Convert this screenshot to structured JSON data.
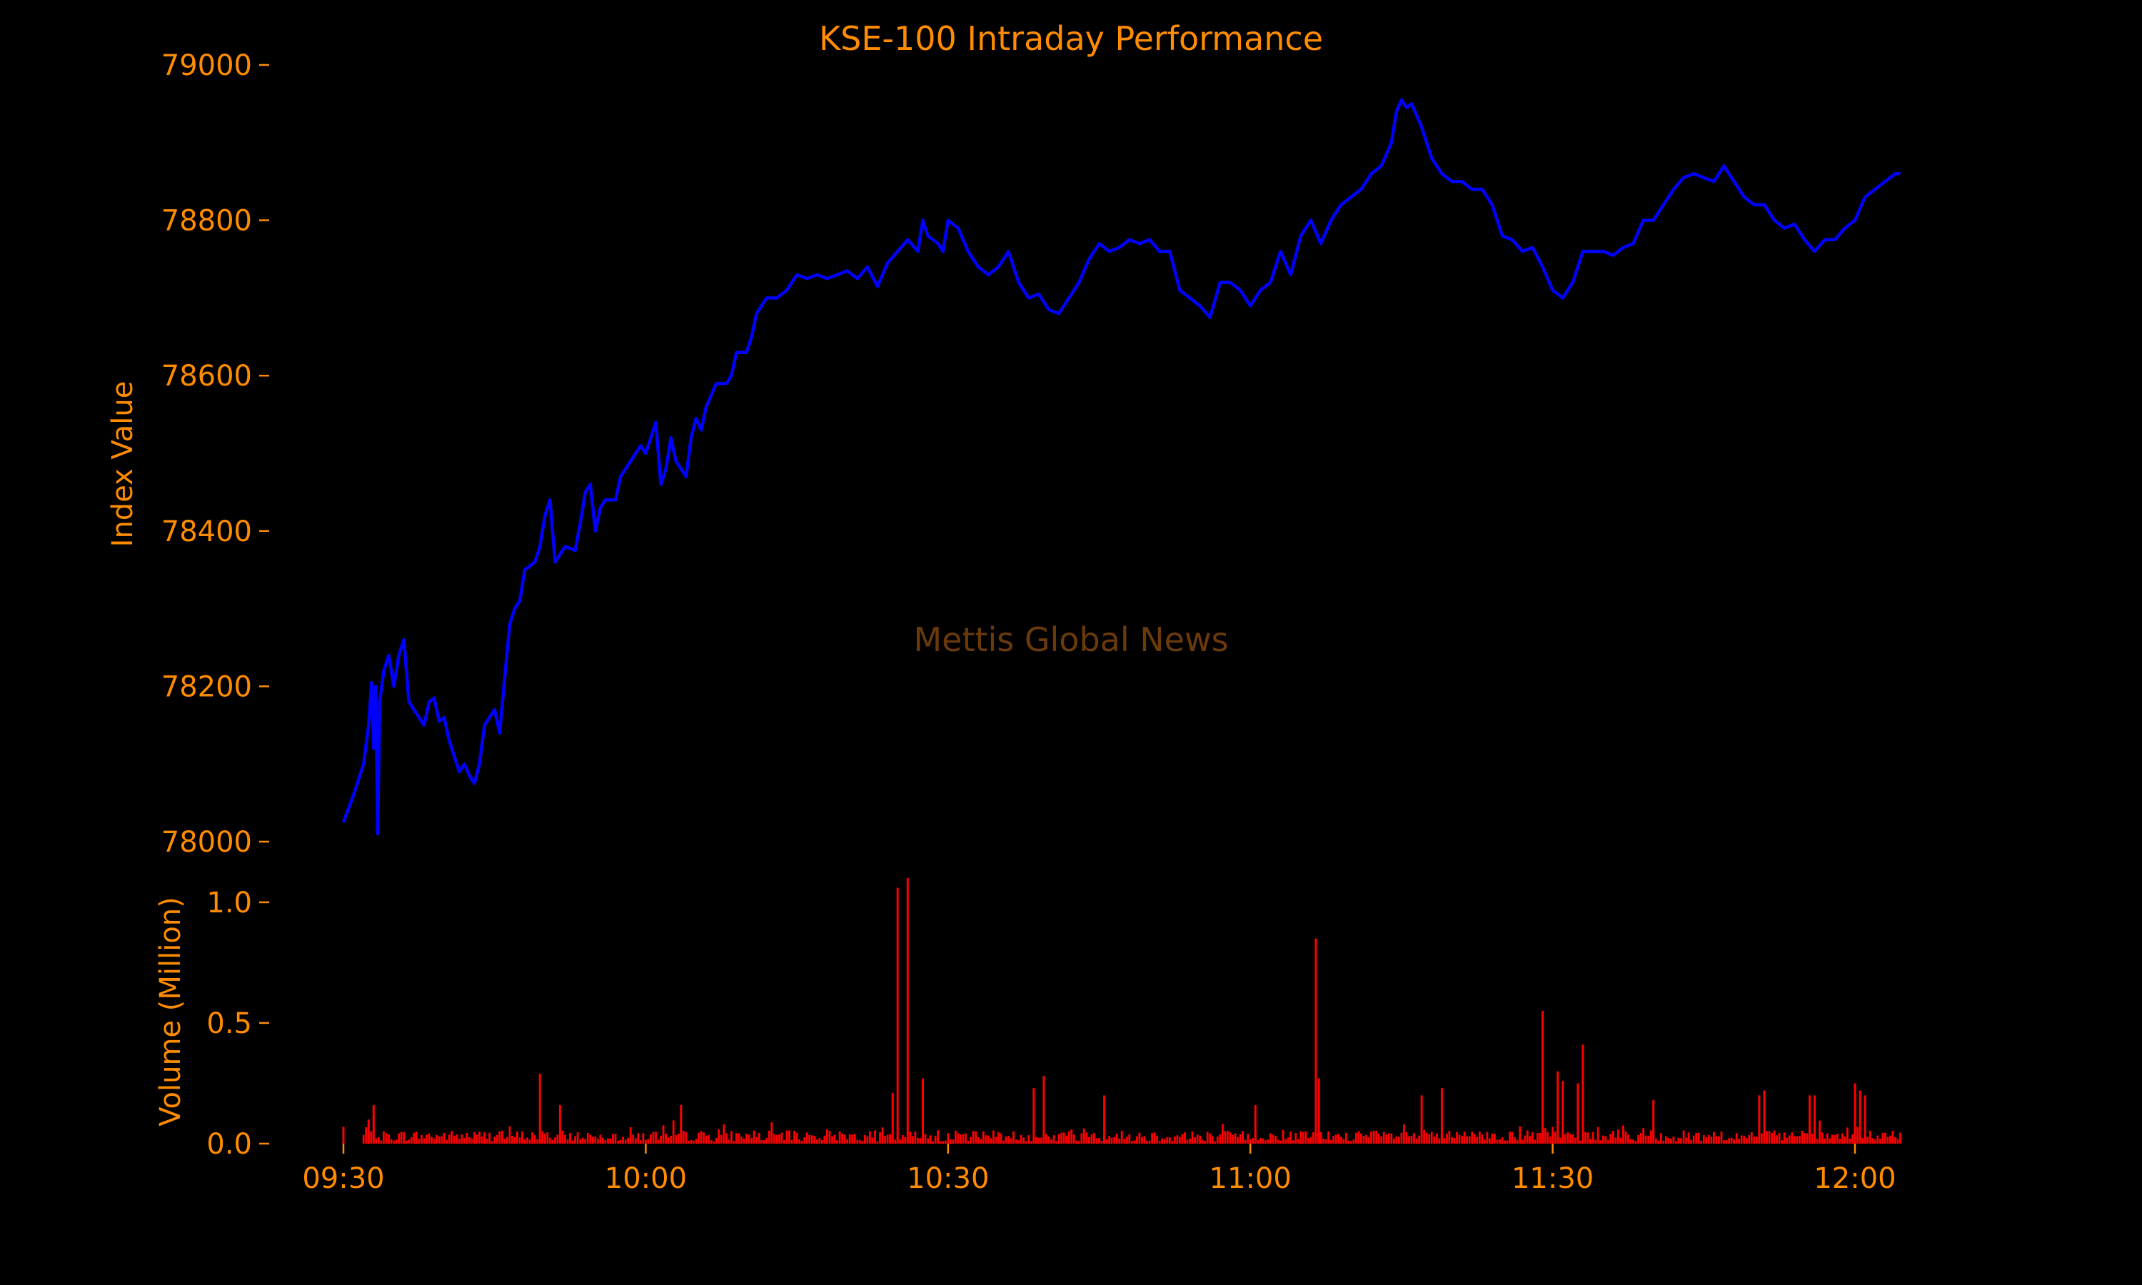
{
  "chart_data": {
    "type": "line",
    "title": "KSE-100 Intraday Performance",
    "watermark": "Mettis Global News",
    "x_axis": {
      "ticks": [
        "09:30",
        "10:00",
        "10:30",
        "11:00",
        "11:30",
        "12:00"
      ],
      "range_minutes": [
        0,
        150
      ],
      "start_time": "09:30"
    },
    "index_panel": {
      "ylabel": "Index Value",
      "ylim": [
        78000,
        79000
      ],
      "yticks": [
        "78000",
        "78200",
        "78400",
        "78600",
        "78800",
        "79000"
      ],
      "series": {
        "color": "#0000ff",
        "points": [
          [
            0,
            78025
          ],
          [
            1,
            78060
          ],
          [
            1.5,
            78080
          ],
          [
            2,
            78100
          ],
          [
            2.5,
            78150
          ],
          [
            2.8,
            78205
          ],
          [
            3,
            78120
          ],
          [
            3.2,
            78200
          ],
          [
            3.4,
            78010
          ],
          [
            3.6,
            78180
          ],
          [
            4,
            78220
          ],
          [
            4.5,
            78240
          ],
          [
            5,
            78200
          ],
          [
            5.5,
            78240
          ],
          [
            6,
            78260
          ],
          [
            6.5,
            78180
          ],
          [
            7,
            78170
          ],
          [
            8,
            78150
          ],
          [
            8.5,
            78180
          ],
          [
            9,
            78185
          ],
          [
            9.5,
            78155
          ],
          [
            10,
            78160
          ],
          [
            10.5,
            78130
          ],
          [
            11,
            78110
          ],
          [
            11.5,
            78090
          ],
          [
            12,
            78100
          ],
          [
            12.5,
            78085
          ],
          [
            13,
            78075
          ],
          [
            13.5,
            78100
          ],
          [
            14,
            78150
          ],
          [
            14.5,
            78160
          ],
          [
            15,
            78170
          ],
          [
            15.5,
            78140
          ],
          [
            16,
            78210
          ],
          [
            16.5,
            78280
          ],
          [
            17,
            78300
          ],
          [
            17.5,
            78310
          ],
          [
            18,
            78350
          ],
          [
            19,
            78360
          ],
          [
            19.5,
            78380
          ],
          [
            20,
            78420
          ],
          [
            20.5,
            78440
          ],
          [
            21,
            78360
          ],
          [
            21.5,
            78370
          ],
          [
            22,
            78380
          ],
          [
            23,
            78375
          ],
          [
            23.5,
            78410
          ],
          [
            24,
            78450
          ],
          [
            24.5,
            78460
          ],
          [
            25,
            78400
          ],
          [
            25.5,
            78430
          ],
          [
            26,
            78440
          ],
          [
            27,
            78440
          ],
          [
            27.5,
            78470
          ],
          [
            28,
            78480
          ],
          [
            28.5,
            78490
          ],
          [
            29,
            78500
          ],
          [
            29.5,
            78510
          ],
          [
            30,
            78500
          ],
          [
            30.5,
            78520
          ],
          [
            31,
            78540
          ],
          [
            31.5,
            78460
          ],
          [
            32,
            78480
          ],
          [
            32.5,
            78520
          ],
          [
            33,
            78490
          ],
          [
            33.5,
            78480
          ],
          [
            34,
            78470
          ],
          [
            34.5,
            78520
          ],
          [
            35,
            78545
          ],
          [
            35.5,
            78530
          ],
          [
            36,
            78560
          ],
          [
            37,
            78590
          ],
          [
            38,
            78590
          ],
          [
            38.5,
            78600
          ],
          [
            39,
            78630
          ],
          [
            40,
            78630
          ],
          [
            40.5,
            78650
          ],
          [
            41,
            78680
          ],
          [
            42,
            78700
          ],
          [
            43,
            78700
          ],
          [
            44,
            78710
          ],
          [
            45,
            78730
          ],
          [
            46,
            78725
          ],
          [
            47,
            78730
          ],
          [
            48,
            78725
          ],
          [
            49,
            78730
          ],
          [
            50,
            78735
          ],
          [
            51,
            78725
          ],
          [
            52,
            78740
          ],
          [
            53,
            78715
          ],
          [
            53.5,
            78730
          ],
          [
            54,
            78745
          ],
          [
            55,
            78760
          ],
          [
            56,
            78775
          ],
          [
            57,
            78760
          ],
          [
            57.5,
            78800
          ],
          [
            58,
            78780
          ],
          [
            59,
            78770
          ],
          [
            59.5,
            78760
          ],
          [
            60,
            78800
          ],
          [
            61,
            78790
          ],
          [
            62,
            78760
          ],
          [
            63,
            78740
          ],
          [
            64,
            78730
          ],
          [
            65,
            78740
          ],
          [
            66,
            78760
          ],
          [
            67,
            78720
          ],
          [
            68,
            78700
          ],
          [
            69,
            78705
          ],
          [
            70,
            78685
          ],
          [
            71,
            78680
          ],
          [
            72,
            78700
          ],
          [
            73,
            78720
          ],
          [
            74,
            78750
          ],
          [
            75,
            78770
          ],
          [
            76,
            78760
          ],
          [
            77,
            78765
          ],
          [
            78,
            78775
          ],
          [
            79,
            78770
          ],
          [
            80,
            78775
          ],
          [
            81,
            78760
          ],
          [
            82,
            78760
          ],
          [
            83,
            78710
          ],
          [
            84,
            78700
          ],
          [
            85,
            78690
          ],
          [
            86,
            78675
          ],
          [
            87,
            78720
          ],
          [
            88,
            78720
          ],
          [
            89,
            78710
          ],
          [
            90,
            78690
          ],
          [
            91,
            78710
          ],
          [
            92,
            78720
          ],
          [
            93,
            78760
          ],
          [
            94,
            78730
          ],
          [
            95,
            78780
          ],
          [
            96,
            78800
          ],
          [
            97,
            78770
          ],
          [
            98,
            78800
          ],
          [
            99,
            78820
          ],
          [
            100,
            78830
          ],
          [
            101,
            78840
          ],
          [
            102,
            78860
          ],
          [
            103,
            78870
          ],
          [
            104,
            78900
          ],
          [
            104.5,
            78940
          ],
          [
            105,
            78955
          ],
          [
            105.5,
            78945
          ],
          [
            106,
            78950
          ],
          [
            107,
            78920
          ],
          [
            108,
            78880
          ],
          [
            109,
            78860
          ],
          [
            110,
            78850
          ],
          [
            111,
            78850
          ],
          [
            112,
            78840
          ],
          [
            113,
            78840
          ],
          [
            114,
            78820
          ],
          [
            115,
            78780
          ],
          [
            116,
            78775
          ],
          [
            117,
            78760
          ],
          [
            118,
            78765
          ],
          [
            119,
            78740
          ],
          [
            120,
            78710
          ],
          [
            121,
            78700
          ],
          [
            122,
            78720
          ],
          [
            123,
            78760
          ],
          [
            124,
            78760
          ],
          [
            125,
            78760
          ],
          [
            126,
            78755
          ],
          [
            127,
            78765
          ],
          [
            128,
            78770
          ],
          [
            129,
            78800
          ],
          [
            130,
            78800
          ],
          [
            131,
            78820
          ],
          [
            132,
            78840
          ],
          [
            133,
            78855
          ],
          [
            134,
            78860
          ],
          [
            135,
            78855
          ],
          [
            136,
            78850
          ],
          [
            137,
            78870
          ],
          [
            138,
            78850
          ],
          [
            139,
            78830
          ],
          [
            140,
            78820
          ],
          [
            141,
            78820
          ],
          [
            142,
            78800
          ],
          [
            143,
            78790
          ],
          [
            144,
            78795
          ],
          [
            145,
            78775
          ],
          [
            146,
            78760
          ],
          [
            147,
            78775
          ],
          [
            148,
            78775
          ],
          [
            149,
            78790
          ],
          [
            150,
            78800
          ],
          [
            151,
            78830
          ],
          [
            152,
            78840
          ],
          [
            153,
            78850
          ],
          [
            154,
            78860
          ],
          [
            154.5,
            78860
          ]
        ]
      }
    },
    "volume_panel": {
      "ylabel": "Volume (Million)",
      "ylim": [
        0,
        1.05
      ],
      "yticks": [
        "0.0",
        "0.5",
        "1.0"
      ],
      "bar_color": "#ff0000",
      "bar_minutes_step": 0.25,
      "baseline_seed": 7,
      "spikes": [
        [
          0,
          0.07
        ],
        [
          2.5,
          0.1
        ],
        [
          3,
          0.16
        ],
        [
          19.5,
          0.29
        ],
        [
          21.5,
          0.16
        ],
        [
          33.5,
          0.16
        ],
        [
          54.5,
          0.21
        ],
        [
          55,
          1.06
        ],
        [
          56,
          1.1
        ],
        [
          57.5,
          0.27
        ],
        [
          68.5,
          0.23
        ],
        [
          69.5,
          0.28
        ],
        [
          75.5,
          0.2
        ],
        [
          90.5,
          0.16
        ],
        [
          96.5,
          0.85
        ],
        [
          96.8,
          0.27
        ],
        [
          107,
          0.2
        ],
        [
          109,
          0.23
        ],
        [
          119,
          0.55
        ],
        [
          120.5,
          0.3
        ],
        [
          121,
          0.26
        ],
        [
          122.5,
          0.25
        ],
        [
          123,
          0.41
        ],
        [
          130,
          0.18
        ],
        [
          140.5,
          0.2
        ],
        [
          141,
          0.22
        ],
        [
          145.5,
          0.2
        ],
        [
          146,
          0.2
        ],
        [
          150,
          0.25
        ],
        [
          150.5,
          0.22
        ],
        [
          151,
          0.2
        ]
      ]
    }
  }
}
